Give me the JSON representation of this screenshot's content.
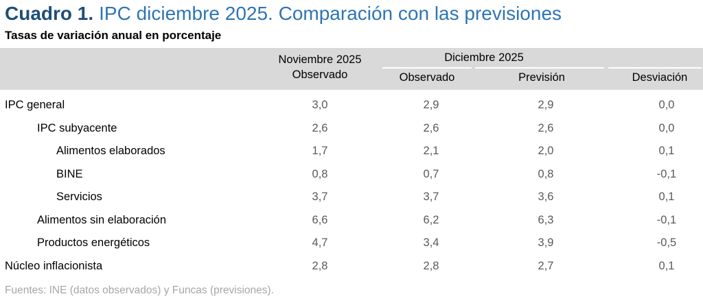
{
  "title": {
    "prefix": "Cuadro 1.",
    "rest": "IPC diciembre 2025. Comparación con las previsiones"
  },
  "subtitle": "Tasas de variación anual en porcentaje",
  "table": {
    "nov_group_line1": "Noviembre 2025",
    "nov_group_line2": "Observado",
    "dic_group": "Diciembre 2025",
    "sub_headers": [
      "Observado",
      "Previsión",
      "Desviación"
    ],
    "rows": [
      {
        "label": "IPC general",
        "indent": 0,
        "values": [
          "3,0",
          "2,9",
          "2,9",
          "0,0"
        ]
      },
      {
        "label": "IPC subyacente",
        "indent": 1,
        "values": [
          "2,6",
          "2,6",
          "2,6",
          "0,0"
        ]
      },
      {
        "label": "Alimentos elaborados",
        "indent": 2,
        "values": [
          "1,7",
          "2,1",
          "2,0",
          "0,1"
        ]
      },
      {
        "label": "BINE",
        "indent": 2,
        "values": [
          "0,8",
          "0,7",
          "0,8",
          "-0,1"
        ]
      },
      {
        "label": "Servicios",
        "indent": 2,
        "values": [
          "3,7",
          "3,7",
          "3,6",
          "0,1"
        ]
      },
      {
        "label": "Alimentos sin elaboración",
        "indent": 1,
        "values": [
          "6,6",
          "6,2",
          "6,3",
          "-0,1"
        ]
      },
      {
        "label": "Productos energéticos",
        "indent": 1,
        "values": [
          "4,7",
          "3,4",
          "3,9",
          "-0,5"
        ]
      },
      {
        "label": "Núcleo inflacionista",
        "indent": 0,
        "values": [
          "2,8",
          "2,8",
          "2,7",
          "0,1"
        ]
      }
    ]
  },
  "footer": "Fuentes: INE (datos observados) y Funcas (previsiones).",
  "colors": {
    "title_dark_blue": "#1F4E79",
    "title_light_blue": "#2E74B5",
    "header_background": "#D9D9D9",
    "number_text": "#595959",
    "label_text": "#000000",
    "footer_text": "#A6A6A6",
    "header_underline": "#FFFFFF"
  }
}
